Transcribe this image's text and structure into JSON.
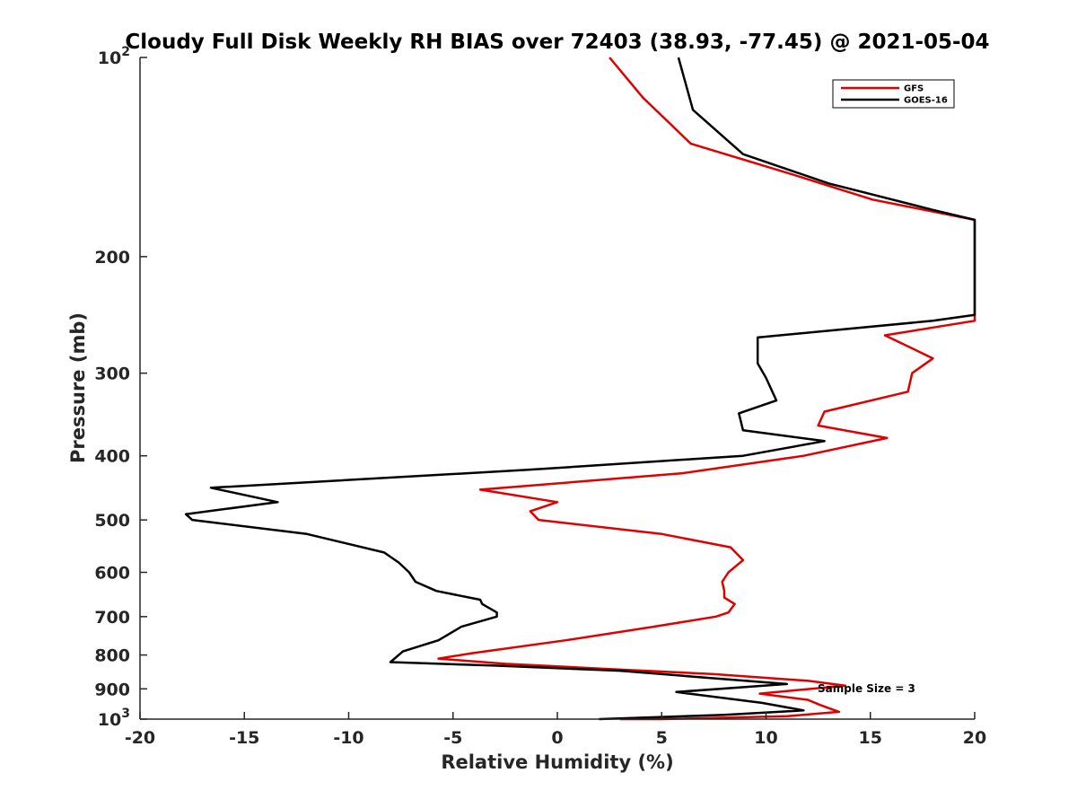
{
  "chart_data": {
    "type": "line",
    "title": "Cloudy Full Disk Weekly RH BIAS over 72403 (38.93, -77.45) @ 2021-05-04",
    "xlabel": "Relative Humidity (%)",
    "ylabel": "Pressure (mb)",
    "xlim": [
      -20,
      20
    ],
    "ylim": [
      100,
      1000
    ],
    "yscale": "log",
    "y_reversed": true,
    "x_ticks": [
      "-20",
      "-15",
      "-10",
      "-5",
      "0",
      "5",
      "10",
      "15",
      "20"
    ],
    "y_ticks": [
      {
        "value": 100,
        "base": "10",
        "exp": "2"
      },
      {
        "value": 200,
        "label": "200"
      },
      {
        "value": 300,
        "label": "300"
      },
      {
        "value": 400,
        "label": "400"
      },
      {
        "value": 500,
        "label": "500"
      },
      {
        "value": 600,
        "label": "600"
      },
      {
        "value": 700,
        "label": "700"
      },
      {
        "value": 800,
        "label": "800"
      },
      {
        "value": 900,
        "label": "900"
      },
      {
        "value": 1000,
        "base": "10",
        "exp": "3"
      }
    ],
    "grid": false,
    "legend_position": "top-right",
    "annotation": "Sample Size = 3",
    "series": [
      {
        "name": "GFS",
        "color": "#e00000",
        "points": [
          [
            2.5,
            100
          ],
          [
            4.1,
            115
          ],
          [
            6.4,
            135
          ],
          [
            11.2,
            150
          ],
          [
            15.1,
            164
          ],
          [
            20,
            176
          ],
          [
            20,
            250
          ],
          [
            15.7,
            263
          ],
          [
            18.0,
            285
          ],
          [
            17.0,
            300
          ],
          [
            16.8,
            320
          ],
          [
            12.8,
            343
          ],
          [
            12.5,
            360
          ],
          [
            15.8,
            376
          ],
          [
            11.8,
            400
          ],
          [
            6.0,
            425
          ],
          [
            -3.7,
            450
          ],
          [
            0.0,
            470
          ],
          [
            -1.3,
            485
          ],
          [
            -0.9,
            500
          ],
          [
            5.0,
            525
          ],
          [
            8.3,
            550
          ],
          [
            8.9,
            575
          ],
          [
            8.2,
            600
          ],
          [
            7.9,
            620
          ],
          [
            8.0,
            640
          ],
          [
            8.0,
            655
          ],
          [
            8.5,
            670
          ],
          [
            8.2,
            690
          ],
          [
            7.6,
            700
          ],
          [
            4.6,
            725
          ],
          [
            0.4,
            760
          ],
          [
            -4.1,
            795
          ],
          [
            -5.7,
            810
          ],
          [
            -2.5,
            825
          ],
          [
            2.5,
            840
          ],
          [
            7.5,
            855
          ],
          [
            12.0,
            875
          ],
          [
            13.8,
            890
          ],
          [
            9.7,
            915
          ],
          [
            12.0,
            935
          ],
          [
            12.6,
            952
          ],
          [
            13.5,
            975
          ],
          [
            11.0,
            990
          ],
          [
            5.0,
            1000
          ],
          [
            3.0,
            1000
          ]
        ]
      },
      {
        "name": "GOES-16",
        "color": "#000000",
        "points": [
          [
            5.8,
            100
          ],
          [
            6.5,
            120
          ],
          [
            8.9,
            140
          ],
          [
            13.0,
            155
          ],
          [
            18.0,
            170
          ],
          [
            20,
            176
          ],
          [
            20,
            245
          ],
          [
            18.0,
            250
          ],
          [
            9.6,
            265
          ],
          [
            9.6,
            290
          ],
          [
            10.0,
            305
          ],
          [
            10.5,
            330
          ],
          [
            8.7,
            345
          ],
          [
            8.9,
            366
          ],
          [
            12.8,
            380
          ],
          [
            8.9,
            400
          ],
          [
            -1.4,
            420
          ],
          [
            -16.6,
            447
          ],
          [
            -13.4,
            470
          ],
          [
            -17.8,
            490
          ],
          [
            -17.5,
            500
          ],
          [
            -12.0,
            525
          ],
          [
            -8.3,
            560
          ],
          [
            -7.6,
            580
          ],
          [
            -7.1,
            600
          ],
          [
            -6.8,
            620
          ],
          [
            -5.8,
            640
          ],
          [
            -3.7,
            660
          ],
          [
            -3.6,
            670
          ],
          [
            -2.9,
            690
          ],
          [
            -2.9,
            700
          ],
          [
            -4.6,
            725
          ],
          [
            -5.7,
            760
          ],
          [
            -7.4,
            790
          ],
          [
            -7.8,
            810
          ],
          [
            -8.0,
            820
          ],
          [
            -3.0,
            830
          ],
          [
            3.0,
            845
          ],
          [
            7.0,
            865
          ],
          [
            11.0,
            885
          ],
          [
            5.7,
            910
          ],
          [
            9.8,
            945
          ],
          [
            11.8,
            970
          ],
          [
            8.0,
            985
          ],
          [
            2.0,
            1000
          ]
        ]
      }
    ]
  }
}
